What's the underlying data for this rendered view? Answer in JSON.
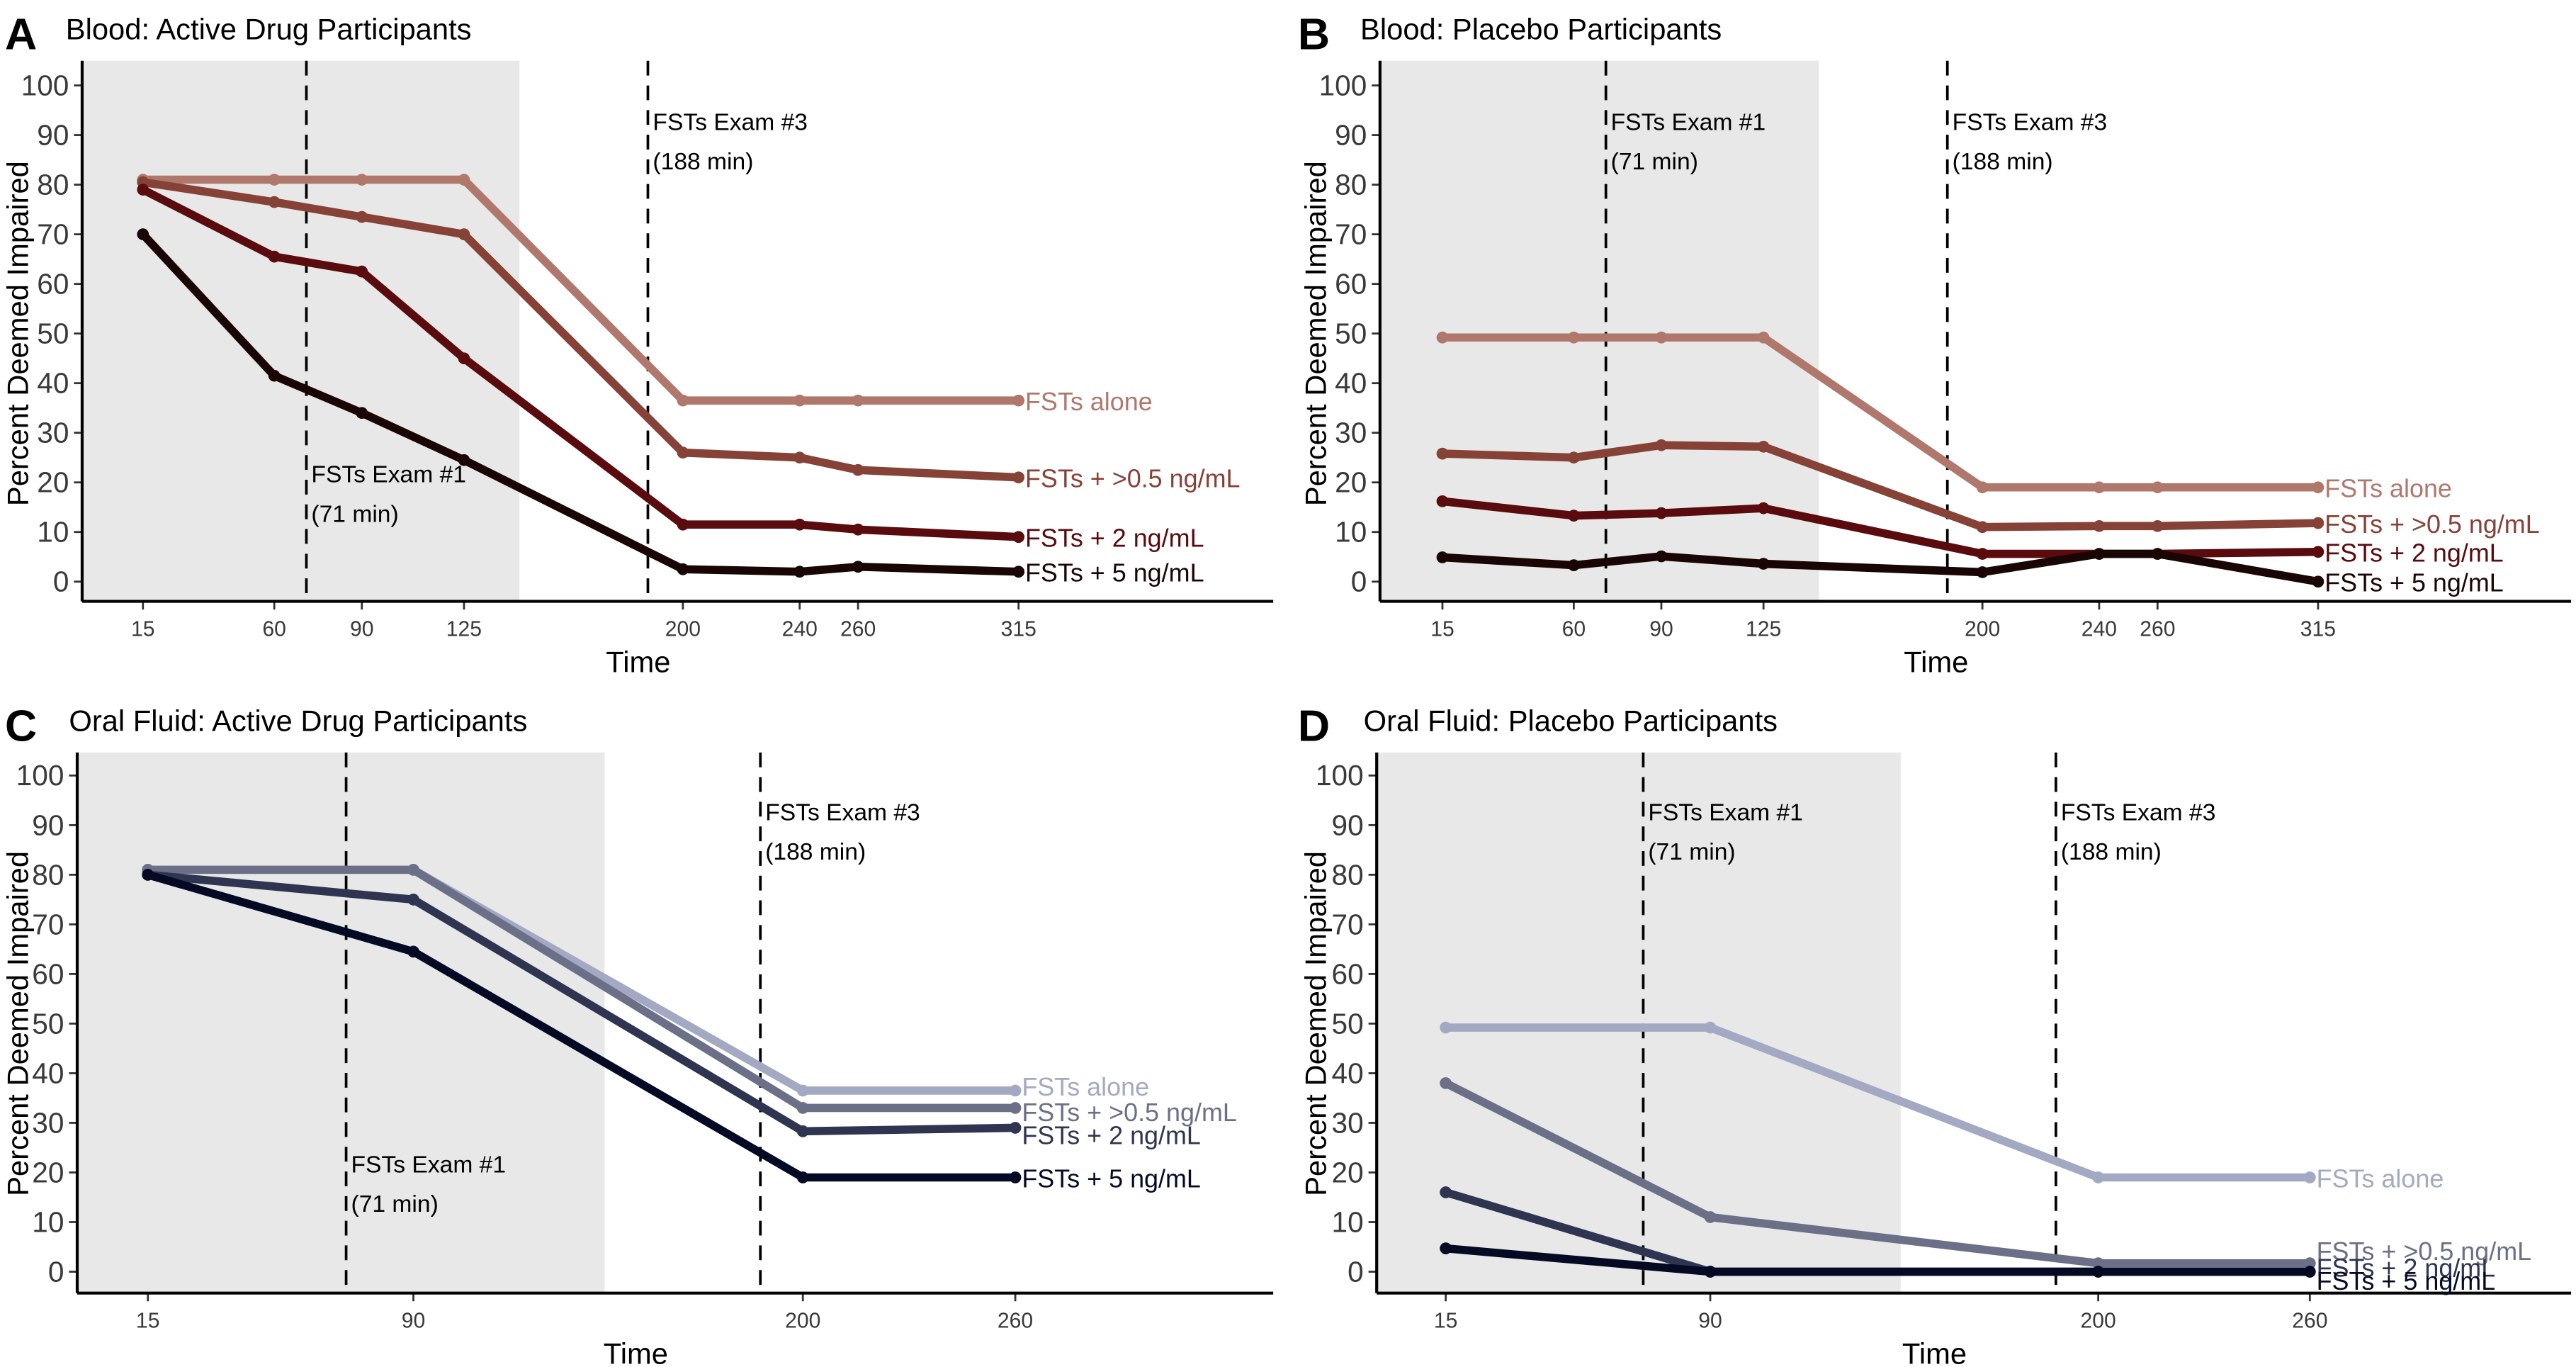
{
  "chart_data": [
    {
      "type": "line",
      "panel_letter": "A",
      "title": "Blood: Active Drug Participants",
      "xlabel": "Time",
      "ylabel": "Percent Deemed Impaired",
      "x": [
        15,
        60,
        90,
        125,
        200,
        240,
        260,
        315
      ],
      "xticks": [
        15,
        60,
        90,
        125,
        200,
        240,
        260,
        315
      ],
      "yticks": [
        0,
        10,
        20,
        30,
        40,
        50,
        60,
        70,
        80,
        90,
        100
      ],
      "ylim": [
        -4,
        104
      ],
      "shaded_region": [
        -6,
        144
      ],
      "grid": false,
      "legend": "direct-labels-right",
      "annotations": [
        {
          "x": 71,
          "lines": [
            "FSTs Exam #1",
            "(71 min)"
          ],
          "text_y": 20
        },
        {
          "x": 188,
          "lines": [
            "FSTs Exam #3",
            "(188 min)"
          ],
          "text_y": 91
        }
      ],
      "series": [
        {
          "name": "FSTs alone",
          "color": "#B0786C",
          "values": [
            81,
            81,
            81,
            81,
            36.5,
            36.5,
            36.5,
            36.5
          ]
        },
        {
          "name": "FSTs + >0.5 ng/mL",
          "color": "#874237",
          "values": [
            80.5,
            76.5,
            73.5,
            70,
            26,
            25,
            22.5,
            21
          ]
        },
        {
          "name": "FSTs + 2 ng/mL",
          "color": "#5A0B0E",
          "values": [
            79,
            65.5,
            62.5,
            45,
            11.5,
            11.5,
            10.5,
            9
          ]
        },
        {
          "name": "FSTs + 5 ng/mL",
          "color": "#1A0505",
          "values": [
            70,
            41.5,
            34,
            24.5,
            2.5,
            2,
            3,
            2
          ]
        }
      ]
    },
    {
      "type": "line",
      "panel_letter": "B",
      "title": "Blood: Placebo Participants",
      "xlabel": "Time",
      "ylabel": "Percent Deemed Impaired",
      "x": [
        15,
        60,
        90,
        125,
        200,
        240,
        260,
        315
      ],
      "xticks": [
        15,
        60,
        90,
        125,
        200,
        240,
        260,
        315
      ],
      "yticks": [
        0,
        10,
        20,
        30,
        40,
        50,
        60,
        70,
        80,
        90,
        100
      ],
      "ylim": [
        -4,
        104
      ],
      "shaded_region": [
        -6,
        144
      ],
      "grid": false,
      "legend": "direct-labels-right",
      "annotations": [
        {
          "x": 71,
          "lines": [
            "FSTs Exam #1",
            "(71 min)"
          ],
          "text_y": 91
        },
        {
          "x": 188,
          "lines": [
            "FSTs Exam #3",
            "(188 min)"
          ],
          "text_y": 91
        }
      ],
      "series": [
        {
          "name": "FSTs alone",
          "color": "#B0786C",
          "values": [
            49.2,
            49.2,
            49.2,
            49.2,
            19,
            19,
            19,
            19
          ]
        },
        {
          "name": "FSTs + >0.5 ng/mL",
          "color": "#874237",
          "values": [
            25.8,
            25,
            27.5,
            27.2,
            11,
            11.2,
            11.2,
            11.8
          ]
        },
        {
          "name": "FSTs + 2 ng/mL",
          "color": "#5A0B0E",
          "values": [
            16.2,
            13.3,
            13.8,
            14.8,
            5.6,
            5.6,
            5.6,
            6
          ]
        },
        {
          "name": "FSTs + 5 ng/mL",
          "color": "#1A0505",
          "values": [
            4.9,
            3.3,
            5.1,
            3.6,
            1.9,
            5.6,
            5.6,
            0
          ]
        }
      ]
    },
    {
      "type": "line",
      "panel_letter": "C",
      "title": "Oral Fluid: Active Drug Participants",
      "xlabel": "Time",
      "ylabel": "Percent Deemed Impaired",
      "x": [
        15,
        90,
        200,
        260
      ],
      "xticks": [
        15,
        90,
        200,
        260
      ],
      "yticks": [
        0,
        10,
        20,
        30,
        40,
        50,
        60,
        70,
        80,
        90,
        100
      ],
      "ylim": [
        -4,
        104
      ],
      "shaded_region": [
        -5,
        144
      ],
      "grid": false,
      "legend": "direct-labels-right",
      "annotations": [
        {
          "x": 71,
          "lines": [
            "FSTs Exam #1",
            "(71 min)"
          ],
          "text_y": 20
        },
        {
          "x": 188,
          "lines": [
            "FSTs Exam #3",
            "(188 min)"
          ],
          "text_y": 91
        }
      ],
      "series": [
        {
          "name": "FSTs alone",
          "color": "#A3A9C2",
          "values": [
            81,
            81,
            36.5,
            36.5
          ]
        },
        {
          "name": "FSTs + >0.5 ng/mL",
          "color": "#6B7088",
          "values": [
            81,
            81,
            33,
            33
          ]
        },
        {
          "name": "FSTs + 2 ng/mL",
          "color": "#2F3450",
          "values": [
            80,
            75,
            28.3,
            29
          ]
        },
        {
          "name": "FSTs + 5 ng/mL",
          "color": "#050A24",
          "values": [
            80,
            64.5,
            19,
            19
          ]
        }
      ]
    },
    {
      "type": "line",
      "panel_letter": "D",
      "title": "Oral Fluid: Placebo Participants",
      "xlabel": "Time",
      "ylabel": "Percent Deemed Impaired",
      "x": [
        15,
        90,
        200,
        260
      ],
      "xticks": [
        15,
        90,
        200,
        260
      ],
      "yticks": [
        0,
        10,
        20,
        30,
        40,
        50,
        60,
        70,
        80,
        90,
        100
      ],
      "ylim": [
        -4,
        104
      ],
      "shaded_region": [
        -5,
        144
      ],
      "grid": false,
      "legend": "direct-labels-right",
      "annotations": [
        {
          "x": 71,
          "lines": [
            "FSTs Exam #1",
            "(71 min)"
          ],
          "text_y": 91
        },
        {
          "x": 188,
          "lines": [
            "FSTs Exam #3",
            "(188 min)"
          ],
          "text_y": 91
        }
      ],
      "series": [
        {
          "name": "FSTs alone",
          "color": "#A3A9C2",
          "values": [
            49.2,
            49.2,
            19,
            19
          ]
        },
        {
          "name": "FSTs + >0.5 ng/mL",
          "color": "#6B7088",
          "values": [
            38,
            11,
            1.7,
            1.7
          ]
        },
        {
          "name": "FSTs + 2 ng/mL",
          "color": "#2F3450",
          "values": [
            16,
            0,
            0,
            0
          ]
        },
        {
          "name": "FSTs + 5 ng/mL",
          "color": "#050A24",
          "values": [
            4.7,
            0,
            0,
            0
          ]
        }
      ]
    }
  ]
}
